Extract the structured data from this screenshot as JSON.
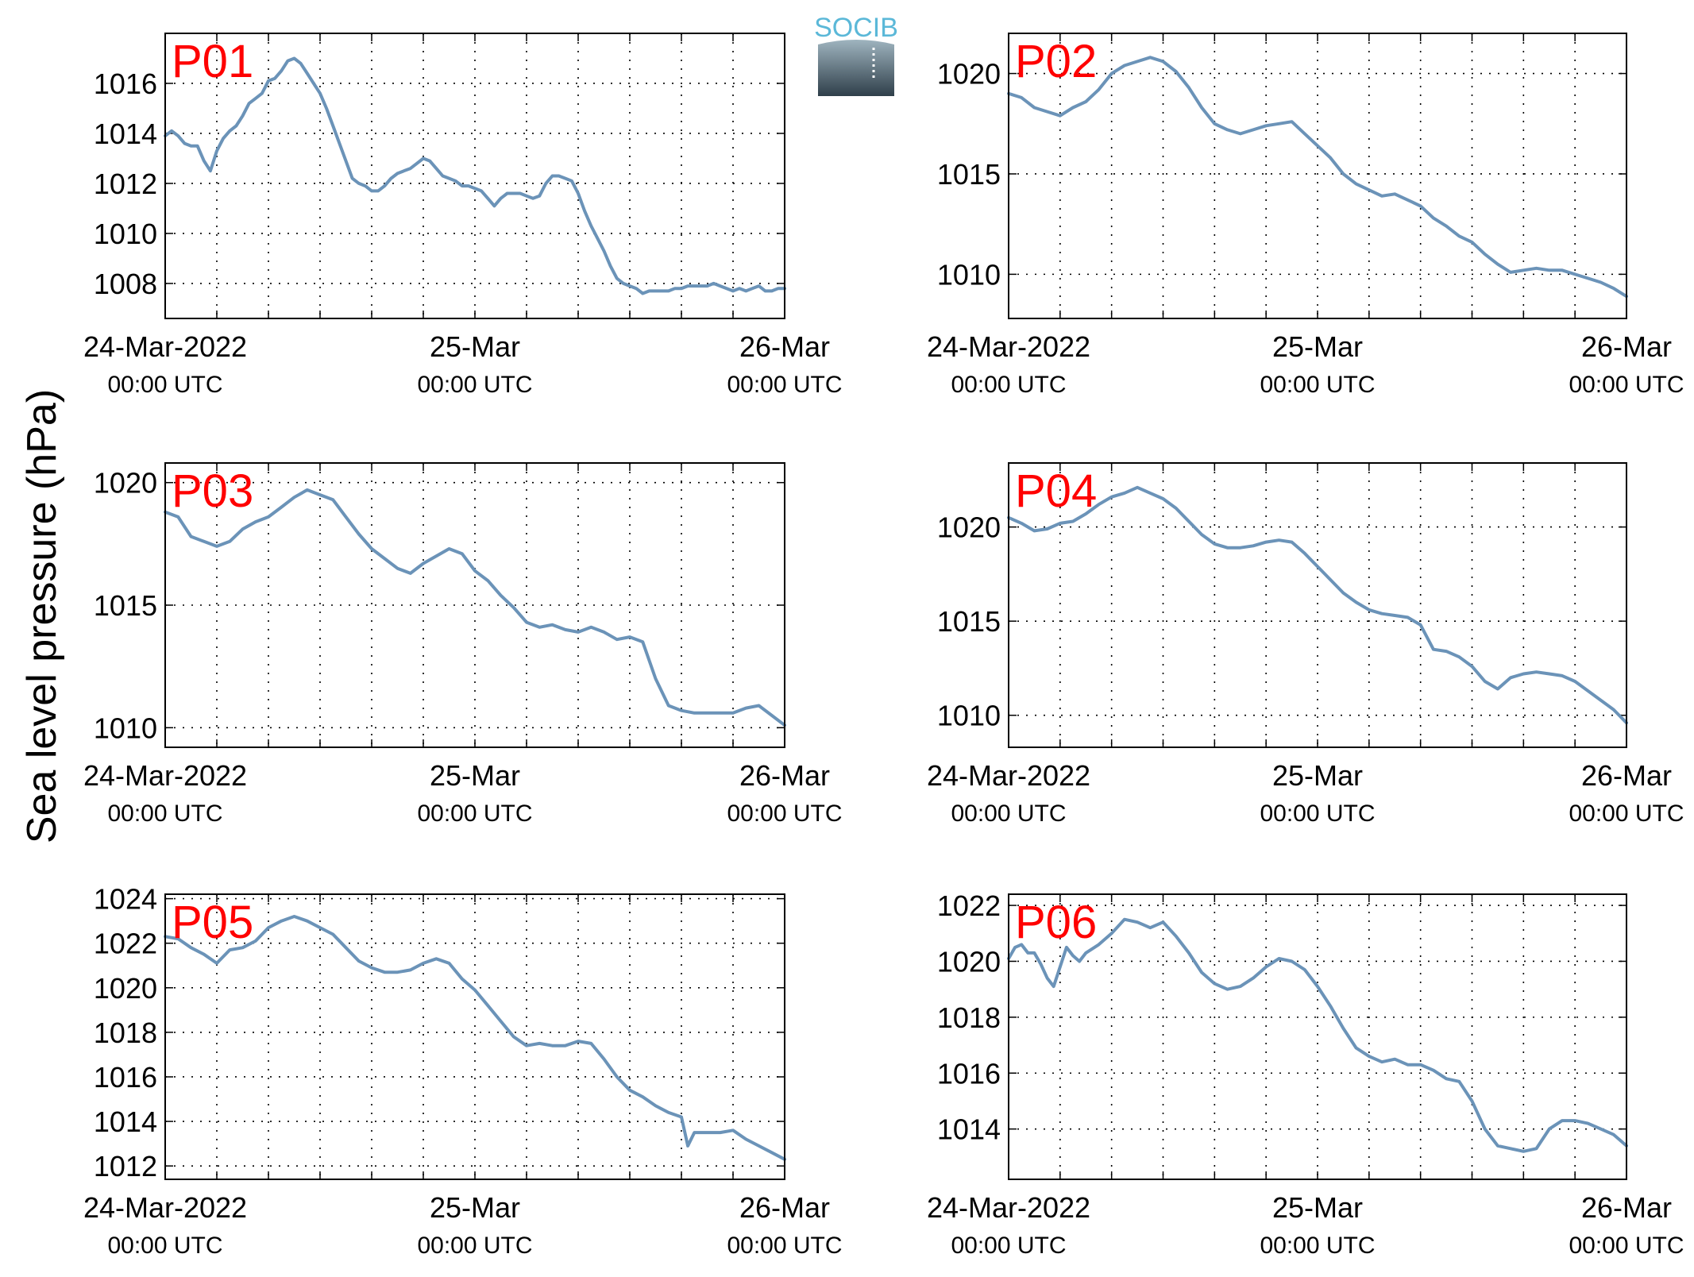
{
  "figure": {
    "ylabel": "Sea level pressure (hPa)",
    "logo_text": "SOCIB"
  },
  "colors": {
    "line": "#6b93b8",
    "panel_label": "#ff0000",
    "axis": "#000000",
    "grid": "#000000",
    "logo_text": "#5bb8d8",
    "logo_top": "#9fb4bf",
    "logo_bottom": "#2f3f4a"
  },
  "x_tick_labels": [
    {
      "x": 0,
      "line1": "24-Mar-2022",
      "line2": "00:00 UTC"
    },
    {
      "x": 24,
      "line1": "25-Mar",
      "line2": "00:00 UTC"
    },
    {
      "x": 48,
      "line1": "26-Mar",
      "line2": "00:00 UTC"
    }
  ],
  "chart_data": [
    {
      "type": "line",
      "label": "P01",
      "x_unit": "hours since 24-Mar-2022 00:00 UTC",
      "xlim": [
        0,
        48
      ],
      "ylim": [
        1006.6,
        1018.0
      ],
      "yticks": [
        1008,
        1010,
        1012,
        1014,
        1016
      ],
      "grid": true,
      "x": [
        0,
        0.5,
        1,
        1.5,
        2,
        2.5,
        3,
        3.5,
        4,
        4.5,
        5,
        5.5,
        6,
        6.5,
        7,
        7.5,
        8,
        8.5,
        9,
        9.5,
        10,
        10.5,
        11,
        11.5,
        12,
        12.5,
        13,
        13.5,
        14,
        14.5,
        15,
        15.5,
        16,
        16.5,
        17,
        17.5,
        18,
        18.5,
        19,
        19.5,
        20,
        20.5,
        21,
        21.5,
        22,
        22.5,
        23,
        23.5,
        24,
        24.5,
        25,
        25.5,
        26,
        26.5,
        27,
        27.5,
        28,
        28.5,
        29,
        29.5,
        30,
        30.5,
        31,
        31.5,
        32,
        32.5,
        33,
        33.5,
        34,
        34.5,
        35,
        35.5,
        36,
        36.5,
        37,
        37.5,
        38,
        38.5,
        39,
        39.5,
        40,
        40.5,
        41,
        41.5,
        42,
        42.5,
        43,
        43.5,
        44,
        44.5,
        45,
        45.5,
        46,
        46.5,
        47,
        47.5,
        48
      ],
      "series": [
        {
          "values": [
            1013.9,
            1014.1,
            1013.9,
            1013.6,
            1013.5,
            1013.5,
            1012.9,
            1012.5,
            1013.3,
            1013.8,
            1014.1,
            1014.3,
            1014.7,
            1015.2,
            1015.4,
            1015.6,
            1016.1,
            1016.2,
            1016.5,
            1016.9,
            1017.0,
            1016.8,
            1016.4,
            1016.0,
            1015.6,
            1015.0,
            1014.3,
            1013.6,
            1012.9,
            1012.2,
            1012.0,
            1011.9,
            1011.7,
            1011.7,
            1011.9,
            1012.2,
            1012.4,
            1012.5,
            1012.6,
            1012.8,
            1013.0,
            1012.9,
            1012.6,
            1012.3,
            1012.2,
            1012.1,
            1011.9,
            1011.9,
            1011.8,
            1011.7,
            1011.4,
            1011.1,
            1011.4,
            1011.6,
            1011.6,
            1011.6,
            1011.5,
            1011.4,
            1011.5,
            1012.0,
            1012.3,
            1012.3,
            1012.2,
            1012.1,
            1011.6,
            1010.9,
            1010.3,
            1009.8,
            1009.3,
            1008.7,
            1008.2,
            1008.0,
            1007.9,
            1007.8,
            1007.6,
            1007.7,
            1007.7,
            1007.7,
            1007.7,
            1007.8,
            1007.8,
            1007.9,
            1007.9,
            1007.9,
            1007.9,
            1008.0,
            1007.9,
            1007.8,
            1007.7,
            1007.8,
            1007.7,
            1007.8,
            1007.9,
            1007.7,
            1007.7,
            1007.8,
            1007.8
          ]
        }
      ]
    },
    {
      "type": "line",
      "label": "P02",
      "x_unit": "hours since 24-Mar-2022 00:00 UTC",
      "xlim": [
        0,
        48
      ],
      "ylim": [
        1007.8,
        1022.0
      ],
      "yticks": [
        1010,
        1015,
        1020
      ],
      "grid": true,
      "x": [
        0,
        1,
        2,
        3,
        4,
        5,
        6,
        7,
        8,
        9,
        10,
        11,
        12,
        13,
        14,
        15,
        16,
        17,
        18,
        19,
        20,
        21,
        22,
        23,
        24,
        25,
        26,
        27,
        28,
        29,
        30,
        31,
        32,
        33,
        34,
        35,
        36,
        37,
        38,
        39,
        40,
        41,
        42,
        43,
        44,
        45,
        46,
        47,
        48
      ],
      "series": [
        {
          "values": [
            1019.0,
            1018.8,
            1018.3,
            1018.1,
            1017.9,
            1018.3,
            1018.6,
            1019.2,
            1020.0,
            1020.4,
            1020.6,
            1020.8,
            1020.6,
            1020.1,
            1019.3,
            1018.3,
            1017.5,
            1017.2,
            1017.0,
            1017.2,
            1017.4,
            1017.5,
            1017.6,
            1017.0,
            1016.4,
            1015.8,
            1015.0,
            1014.5,
            1014.2,
            1013.9,
            1014.0,
            1013.7,
            1013.4,
            1012.8,
            1012.4,
            1011.9,
            1011.6,
            1011.0,
            1010.5,
            1010.1,
            1010.2,
            1010.3,
            1010.2,
            1010.2,
            1010.0,
            1009.8,
            1009.6,
            1009.3,
            1008.9
          ]
        }
      ]
    },
    {
      "type": "line",
      "label": "P03",
      "x_unit": "hours since 24-Mar-2022 00:00 UTC",
      "xlim": [
        0,
        48
      ],
      "ylim": [
        1009.2,
        1020.8
      ],
      "yticks": [
        1010,
        1015,
        1020
      ],
      "grid": true,
      "x": [
        0,
        1,
        2,
        3,
        4,
        5,
        6,
        7,
        8,
        9,
        10,
        11,
        12,
        13,
        14,
        15,
        16,
        17,
        18,
        19,
        20,
        21,
        22,
        23,
        24,
        25,
        26,
        27,
        28,
        29,
        30,
        31,
        32,
        33,
        34,
        35,
        36,
        37,
        38,
        39,
        40,
        41,
        42,
        43,
        44,
        45,
        46,
        47,
        48
      ],
      "series": [
        {
          "values": [
            1018.8,
            1018.6,
            1017.8,
            1017.6,
            1017.4,
            1017.6,
            1018.1,
            1018.4,
            1018.6,
            1019.0,
            1019.4,
            1019.7,
            1019.5,
            1019.3,
            1018.6,
            1017.9,
            1017.3,
            1016.9,
            1016.5,
            1016.3,
            1016.7,
            1017.0,
            1017.3,
            1017.1,
            1016.4,
            1016.0,
            1015.4,
            1014.9,
            1014.3,
            1014.1,
            1014.2,
            1014.0,
            1013.9,
            1014.1,
            1013.9,
            1013.6,
            1013.7,
            1013.5,
            1012.0,
            1010.9,
            1010.7,
            1010.6,
            1010.6,
            1010.6,
            1010.6,
            1010.8,
            1010.9,
            1010.5,
            1010.1
          ]
        }
      ]
    },
    {
      "type": "line",
      "label": "P04",
      "x_unit": "hours since 24-Mar-2022 00:00 UTC",
      "xlim": [
        0,
        48
      ],
      "ylim": [
        1008.3,
        1023.4
      ],
      "yticks": [
        1010,
        1015,
        1020
      ],
      "grid": true,
      "x": [
        0,
        1,
        2,
        3,
        4,
        5,
        6,
        7,
        8,
        9,
        10,
        11,
        12,
        13,
        14,
        15,
        16,
        17,
        18,
        19,
        20,
        21,
        22,
        23,
        24,
        25,
        26,
        27,
        28,
        29,
        30,
        31,
        32,
        33,
        34,
        35,
        36,
        37,
        38,
        39,
        40,
        41,
        42,
        43,
        44,
        45,
        46,
        47,
        48
      ],
      "series": [
        {
          "values": [
            1020.5,
            1020.2,
            1019.8,
            1019.9,
            1020.2,
            1020.3,
            1020.7,
            1021.2,
            1021.6,
            1021.8,
            1022.1,
            1021.8,
            1021.5,
            1021.0,
            1020.3,
            1019.6,
            1019.1,
            1018.9,
            1018.9,
            1019.0,
            1019.2,
            1019.3,
            1019.2,
            1018.6,
            1017.9,
            1017.2,
            1016.5,
            1016.0,
            1015.6,
            1015.4,
            1015.3,
            1015.2,
            1014.8,
            1013.5,
            1013.4,
            1013.1,
            1012.6,
            1011.8,
            1011.4,
            1012.0,
            1012.2,
            1012.3,
            1012.2,
            1012.1,
            1011.8,
            1011.3,
            1010.8,
            1010.3,
            1009.6
          ]
        }
      ]
    },
    {
      "type": "line",
      "label": "P05",
      "x_unit": "hours since 24-Mar-2022 00:00 UTC",
      "xlim": [
        0,
        48
      ],
      "ylim": [
        1011.4,
        1024.2
      ],
      "yticks": [
        1012,
        1014,
        1016,
        1018,
        1020,
        1022,
        1024
      ],
      "grid": true,
      "x": [
        0,
        1,
        2,
        3,
        4,
        5,
        6,
        7,
        8,
        9,
        10,
        11,
        12,
        13,
        14,
        15,
        16,
        17,
        18,
        19,
        20,
        21,
        22,
        23,
        24,
        25,
        26,
        27,
        28,
        29,
        30,
        31,
        32,
        33,
        34,
        35,
        36,
        37,
        38,
        39,
        40,
        40.5,
        41,
        42,
        43,
        44,
        45,
        46,
        47,
        48
      ],
      "series": [
        {
          "values": [
            1022.3,
            1022.2,
            1021.8,
            1021.5,
            1021.1,
            1021.7,
            1021.8,
            1022.1,
            1022.7,
            1023.0,
            1023.2,
            1023.0,
            1022.7,
            1022.4,
            1021.8,
            1021.2,
            1020.9,
            1020.7,
            1020.7,
            1020.8,
            1021.1,
            1021.3,
            1021.1,
            1020.4,
            1019.9,
            1019.2,
            1018.5,
            1017.8,
            1017.4,
            1017.5,
            1017.4,
            1017.4,
            1017.6,
            1017.5,
            1016.8,
            1016.0,
            1015.4,
            1015.1,
            1014.7,
            1014.4,
            1014.2,
            1012.9,
            1013.5,
            1013.5,
            1013.5,
            1013.6,
            1013.2,
            1012.9,
            1012.6,
            1012.3
          ]
        }
      ]
    },
    {
      "type": "line",
      "label": "P06",
      "x_unit": "hours since 24-Mar-2022 00:00 UTC",
      "xlim": [
        0,
        48
      ],
      "ylim": [
        1012.2,
        1022.4
      ],
      "yticks": [
        1014,
        1016,
        1018,
        1020,
        1022
      ],
      "grid": true,
      "x": [
        0,
        0.5,
        1,
        1.5,
        2,
        2.5,
        3,
        3.5,
        4,
        4.5,
        5,
        5.5,
        6,
        7,
        8,
        9,
        10,
        11,
        12,
        13,
        14,
        15,
        16,
        17,
        18,
        19,
        20,
        21,
        22,
        23,
        24,
        25,
        26,
        27,
        28,
        29,
        30,
        31,
        32,
        33,
        34,
        35,
        36,
        37,
        38,
        39,
        40,
        41,
        42,
        43,
        44,
        45,
        46,
        47,
        48
      ],
      "series": [
        {
          "values": [
            1020.1,
            1020.5,
            1020.6,
            1020.3,
            1020.3,
            1019.9,
            1019.4,
            1019.1,
            1019.8,
            1020.5,
            1020.2,
            1020.0,
            1020.3,
            1020.6,
            1021.0,
            1021.5,
            1021.4,
            1021.2,
            1021.4,
            1020.9,
            1020.3,
            1019.6,
            1019.2,
            1019.0,
            1019.1,
            1019.4,
            1019.8,
            1020.1,
            1020.0,
            1019.7,
            1019.1,
            1018.4,
            1017.6,
            1016.9,
            1016.6,
            1016.4,
            1016.5,
            1016.3,
            1016.3,
            1016.1,
            1015.8,
            1015.7,
            1015.0,
            1014.0,
            1013.4,
            1013.3,
            1013.2,
            1013.3,
            1014.0,
            1014.3,
            1014.3,
            1014.2,
            1014.0,
            1013.8,
            1013.4
          ]
        }
      ]
    }
  ]
}
